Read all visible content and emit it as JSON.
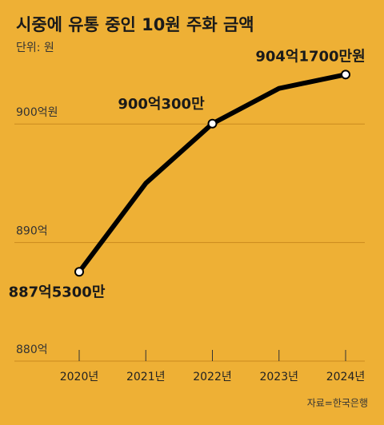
{
  "chart_data": {
    "type": "line",
    "title": "시중에 유통 중인 10원 주화 금액",
    "subtitle": "단위: 원",
    "source": "자료=한국은행",
    "categories": [
      "2020년",
      "2021년",
      "2022년",
      "2023년",
      "2024년"
    ],
    "values": [
      887.53,
      895,
      900.03,
      903,
      904.17
    ],
    "value_labels": [
      "887억5300만",
      null,
      "900억300만",
      null,
      "904억1700만원"
    ],
    "color": "#000000",
    "ylim": [
      880,
      905
    ],
    "yticks": [
      {
        "value": 880,
        "label": "880억"
      },
      {
        "value": 890,
        "label": "890억"
      },
      {
        "value": 900,
        "label": "900억원"
      }
    ],
    "grid": true
  }
}
